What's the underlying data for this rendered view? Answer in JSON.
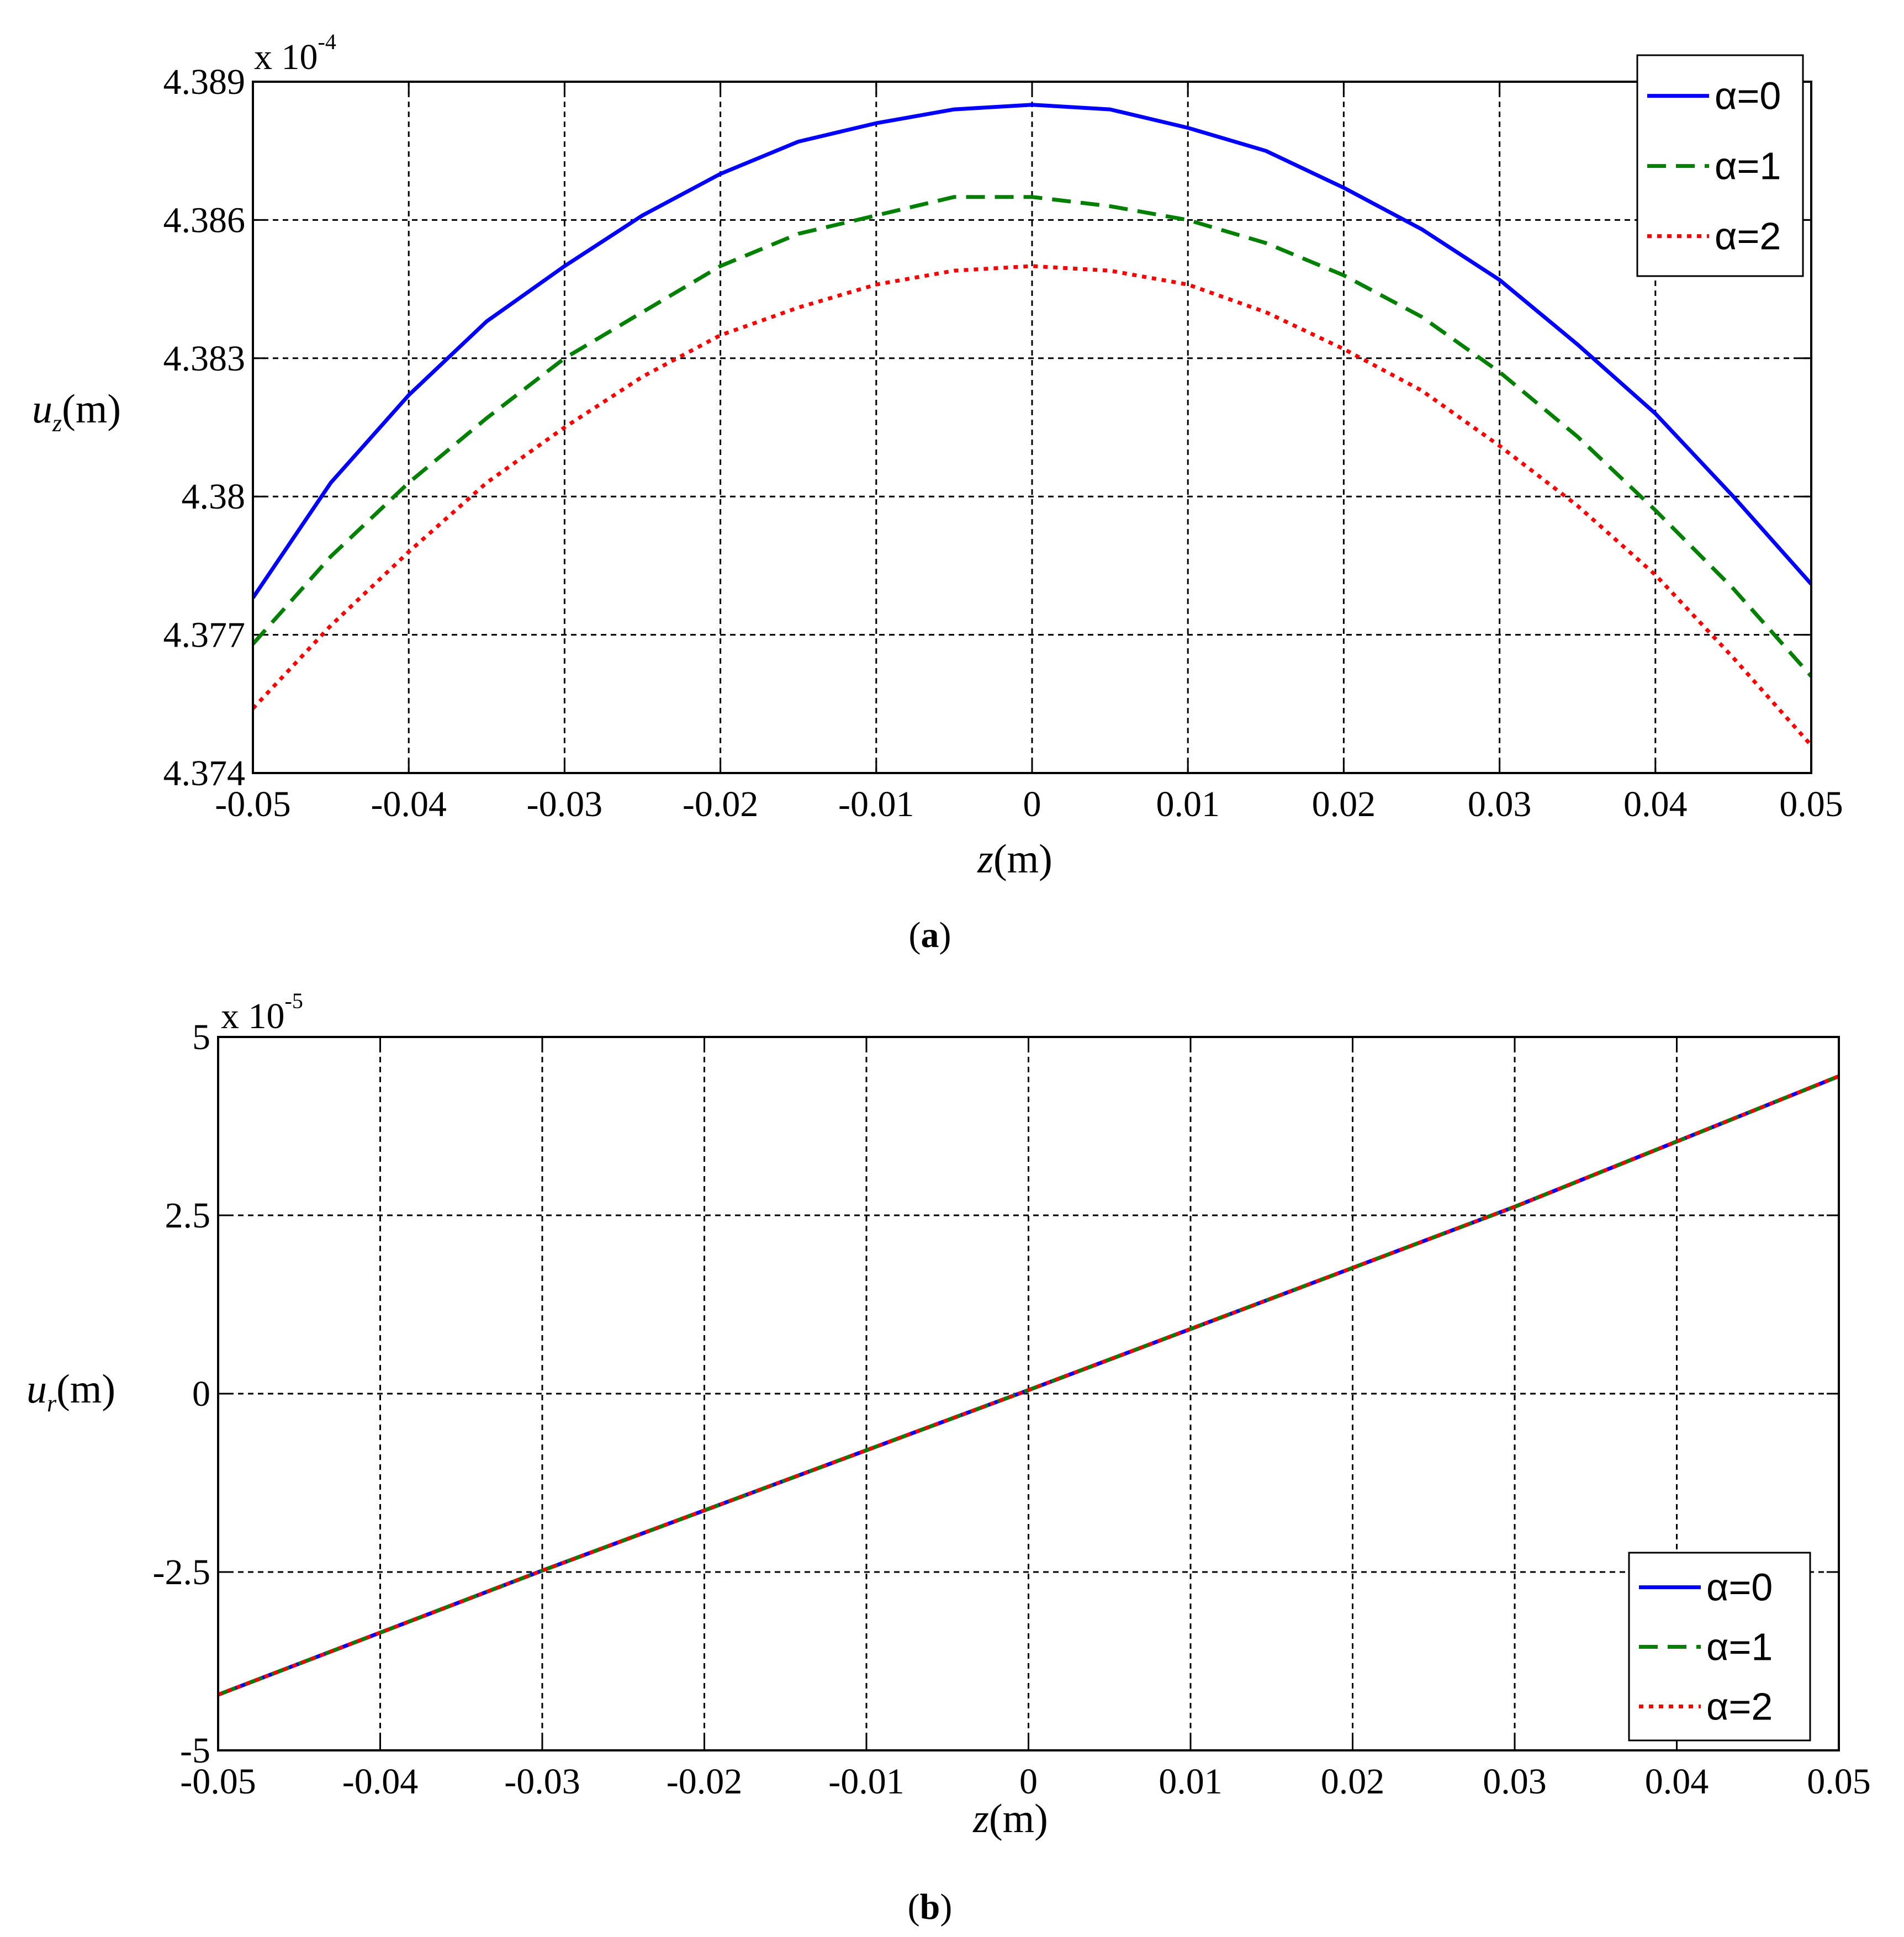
{
  "chart_data": [
    {
      "type": "line",
      "caption_letter": "a",
      "exponent_label": {
        "base": "x 10",
        "power": "-4"
      },
      "xlabel": {
        "symbol": "z",
        "unit": "(m)"
      },
      "ylabel": {
        "symbol": "u",
        "subscript": "z",
        "unit": "(m)"
      },
      "xlim": [
        -0.05,
        0.05
      ],
      "ylim": [
        4.374,
        4.389
      ],
      "xticks": [
        -0.05,
        -0.04,
        -0.03,
        -0.02,
        -0.01,
        0,
        0.01,
        0.02,
        0.03,
        0.04,
        0.05
      ],
      "xtick_labels": [
        "-0.05",
        "-0.04",
        "-0.03",
        "-0.02",
        "-0.01",
        "0",
        "0.01",
        "0.02",
        "0.03",
        "0.04",
        "0.05"
      ],
      "yticks": [
        4.374,
        4.377,
        4.38,
        4.383,
        4.386,
        4.389
      ],
      "ytick_labels": [
        "4.374",
        "4.377",
        "4.38",
        "4.383",
        "4.386",
        "4.389"
      ],
      "grid": true,
      "legend_position": "top-right",
      "series": [
        {
          "name": "α=0",
          "color": "#0000ff",
          "style": "solid",
          "x": [
            -0.05,
            -0.045,
            -0.04,
            -0.035,
            -0.03,
            -0.025,
            -0.02,
            -0.015,
            -0.01,
            -0.005,
            0,
            0.005,
            0.01,
            0.015,
            0.02,
            0.025,
            0.03,
            0.035,
            0.04,
            0.045,
            0.05
          ],
          "y": [
            4.3778,
            4.3803,
            4.3822,
            4.3838,
            4.385,
            4.3861,
            4.387,
            4.3877,
            4.3881,
            4.3884,
            4.3885,
            4.3884,
            4.388,
            4.3875,
            4.3867,
            4.3858,
            4.3847,
            4.3833,
            4.3818,
            4.38,
            4.3781
          ]
        },
        {
          "name": "α=1",
          "color": "#008000",
          "style": "dashed",
          "x": [
            -0.05,
            -0.045,
            -0.04,
            -0.035,
            -0.03,
            -0.025,
            -0.02,
            -0.015,
            -0.01,
            -0.005,
            0,
            0.005,
            0.01,
            0.015,
            0.02,
            0.025,
            0.03,
            0.035,
            0.04,
            0.045,
            0.05
          ],
          "y": [
            4.3768,
            4.3787,
            4.3803,
            4.3817,
            4.383,
            4.384,
            4.385,
            4.3857,
            4.3861,
            4.3865,
            4.3865,
            4.3863,
            4.386,
            4.3855,
            4.3848,
            4.3839,
            4.3827,
            4.3813,
            4.3797,
            4.378,
            4.3761
          ]
        },
        {
          "name": "α=2",
          "color": "#ff0000",
          "style": "dotted",
          "x": [
            -0.05,
            -0.045,
            -0.04,
            -0.035,
            -0.03,
            -0.025,
            -0.02,
            -0.015,
            -0.01,
            -0.005,
            0,
            0.005,
            0.01,
            0.015,
            0.02,
            0.025,
            0.03,
            0.035,
            0.04,
            0.045,
            0.05
          ],
          "y": [
            4.3754,
            4.3772,
            4.3788,
            4.3803,
            4.3815,
            4.3826,
            4.3835,
            4.3841,
            4.3846,
            4.3849,
            4.385,
            4.3849,
            4.3846,
            4.384,
            4.3832,
            4.3823,
            4.3811,
            4.3798,
            4.3783,
            4.3765,
            4.3746
          ]
        }
      ]
    },
    {
      "type": "line",
      "caption_letter": "b",
      "exponent_label": {
        "base": "x 10",
        "power": "-5"
      },
      "xlabel": {
        "symbol": "z",
        "unit": "(m)"
      },
      "ylabel": {
        "symbol": "u",
        "subscript": "r",
        "unit": "(m)"
      },
      "xlim": [
        -0.05,
        0.05
      ],
      "ylim": [
        -5,
        5
      ],
      "xticks": [
        -0.05,
        -0.04,
        -0.03,
        -0.02,
        -0.01,
        0,
        0.01,
        0.02,
        0.03,
        0.04,
        0.05
      ],
      "xtick_labels": [
        "-0.05",
        "-0.04",
        "-0.03",
        "-0.02",
        "-0.01",
        "0",
        "0.01",
        "0.02",
        "0.03",
        "0.04",
        "0.05"
      ],
      "yticks": [
        -5,
        -2.5,
        0,
        2.5,
        5
      ],
      "ytick_labels": [
        "-5",
        "-2.5",
        "0",
        "2.5",
        "5"
      ],
      "grid": true,
      "legend_position": "bottom-right",
      "series": [
        {
          "name": "α=0",
          "color": "#0000ff",
          "style": "solid",
          "x": [
            -0.05,
            -0.03,
            0,
            0.03,
            0.05
          ],
          "y": [
            -4.22,
            -2.48,
            0.05,
            2.62,
            4.45
          ]
        },
        {
          "name": "α=1",
          "color": "#008000",
          "style": "dashed",
          "x": [
            -0.05,
            -0.03,
            0,
            0.03,
            0.05
          ],
          "y": [
            -4.22,
            -2.48,
            0.05,
            2.62,
            4.45
          ]
        },
        {
          "name": "α=2",
          "color": "#ff0000",
          "style": "dotted",
          "x": [
            -0.05,
            -0.03,
            0,
            0.03,
            0.05
          ],
          "y": [
            -4.22,
            -2.48,
            0.05,
            2.62,
            4.45
          ]
        }
      ]
    }
  ]
}
